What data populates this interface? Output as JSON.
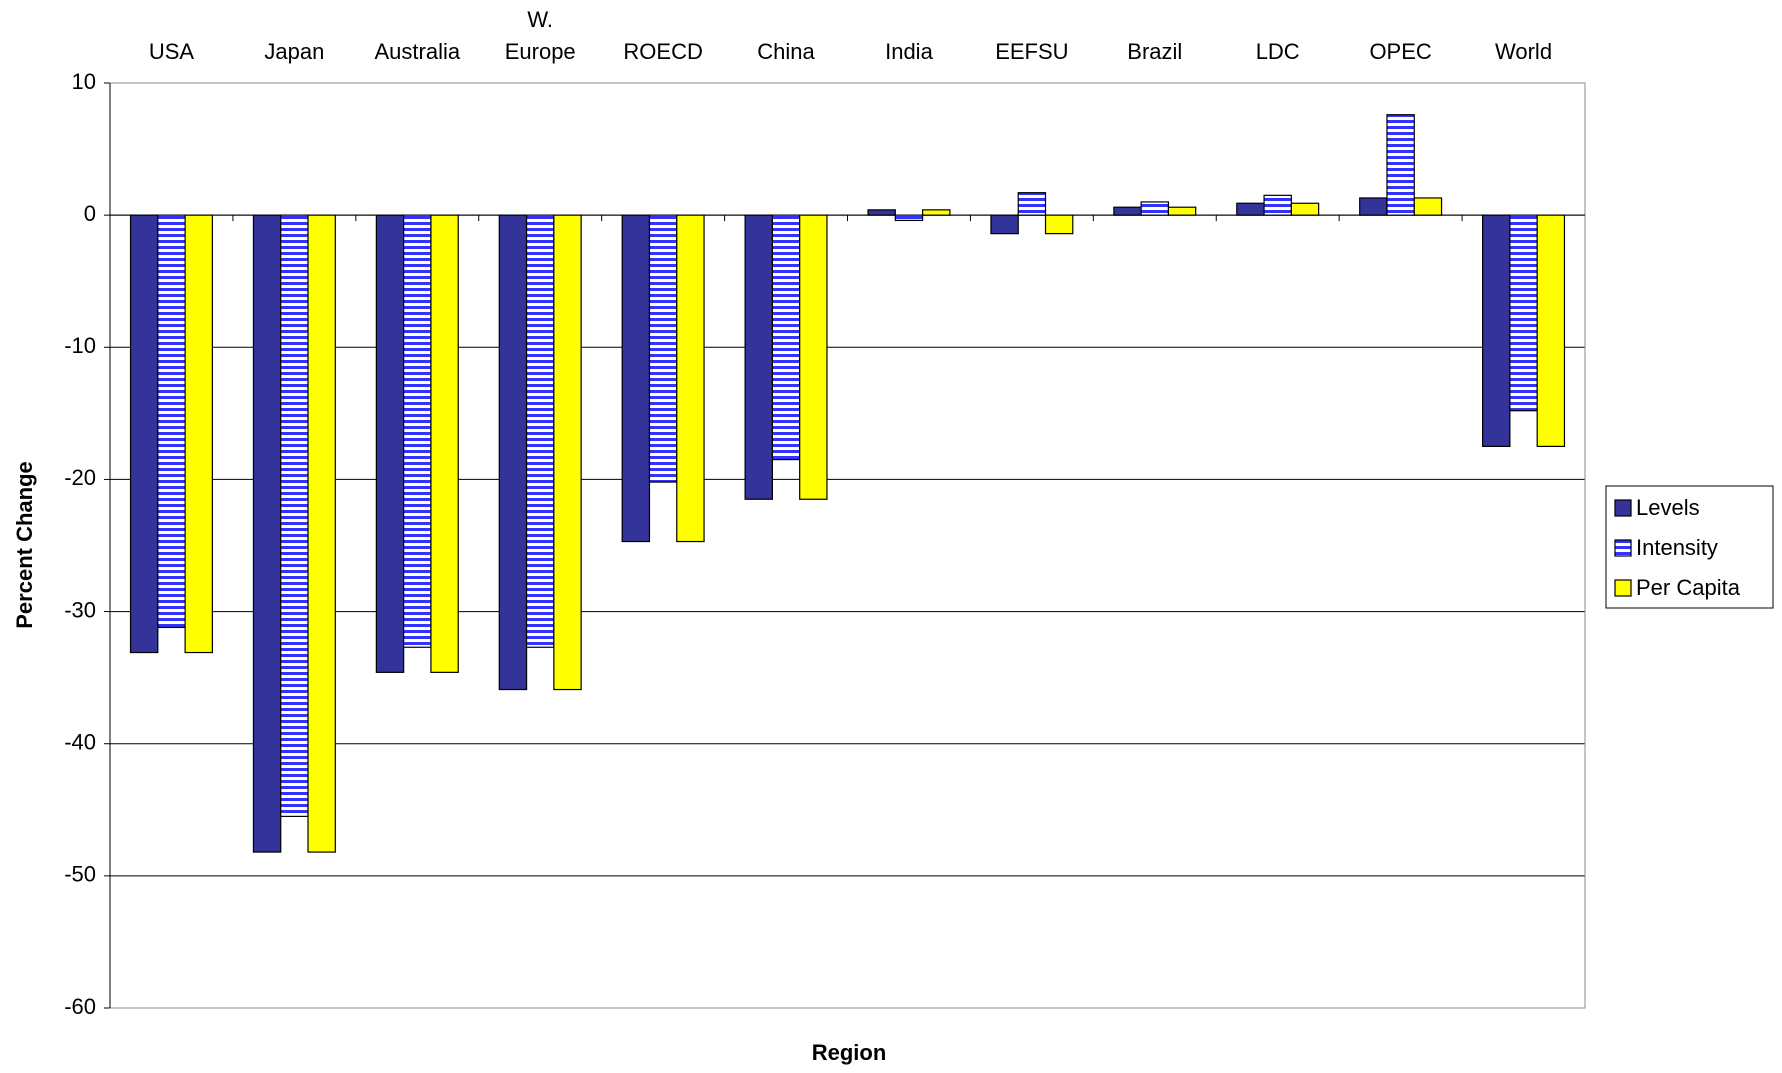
{
  "chart_data": {
    "type": "bar",
    "x_label": "Region",
    "y_label": "Percent Change",
    "categories": [
      "USA",
      "Japan",
      "Australia",
      "W. Europe",
      "ROECD",
      "China",
      "India",
      "EEFSU",
      "Brazil",
      "LDC",
      "OPEC",
      "World"
    ],
    "series": [
      {
        "name": "Levels",
        "color": "#333399",
        "values": [
          -33.1,
          -48.2,
          -34.6,
          -35.9,
          -24.7,
          -21.5,
          0.4,
          -1.4,
          0.6,
          0.9,
          1.3,
          -17.5
        ]
      },
      {
        "name": "Intensity",
        "color": "#3333ff",
        "pattern": "horizontal-stripes",
        "values": [
          -31.2,
          -45.5,
          -32.7,
          -32.7,
          -20.2,
          -18.5,
          -0.4,
          1.7,
          1.0,
          1.5,
          7.6,
          -14.8
        ]
      },
      {
        "name": "Per Capita",
        "color": "#ffff00",
        "values": [
          -33.1,
          -48.2,
          -34.6,
          -35.9,
          -24.7,
          -21.5,
          0.4,
          -1.4,
          0.6,
          0.9,
          1.3,
          -17.5
        ]
      }
    ],
    "ylim": [
      -60,
      10
    ],
    "yticks": [
      -60,
      -50,
      -40,
      -30,
      -20,
      -10,
      0,
      10
    ],
    "grid": true,
    "legend": "right"
  }
}
